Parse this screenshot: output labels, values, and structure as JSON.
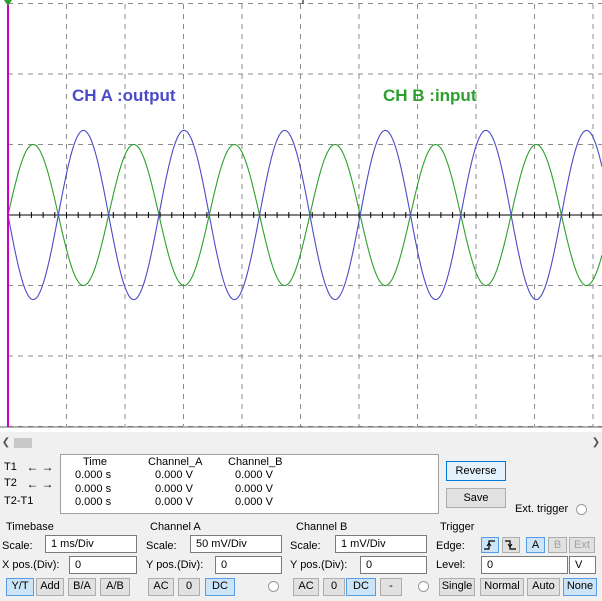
{
  "scope": {
    "background": "#ffffff",
    "grid_color": "#8c8c8c",
    "channel_a": {
      "label": "CH A :output",
      "color": "#4b4bc8",
      "amplitude_div": 1.2,
      "period_div": 1.72,
      "phase_deg": 180
    },
    "channel_b": {
      "label": "CH B :input",
      "color": "#2ca02c",
      "amplitude_div": 1.0,
      "period_div": 1.72,
      "phase_deg": 0
    }
  },
  "readout": {
    "headers": [
      "Time",
      "Channel_A",
      "Channel_B"
    ],
    "rows": [
      {
        "label": "T1",
        "time": "0.000 s",
        "a": "0.000 V",
        "b": "0.000 V"
      },
      {
        "label": "T2",
        "time": "0.000 s",
        "a": "0.000 V",
        "b": "0.000 V"
      },
      {
        "label": "T2-T1",
        "time": "0.000 s",
        "a": "0.000 V",
        "b": "0.000 V"
      }
    ],
    "reverse_label": "Reverse",
    "save_label": "Save",
    "ext_trigger_label": "Ext. trigger"
  },
  "timebase": {
    "title": "Timebase",
    "scale_label": "Scale:",
    "scale_value": "1 ms/Div",
    "xpos_label": "X pos.(Div):",
    "xpos_value": "0",
    "modes": [
      "Y/T",
      "Add",
      "B/A",
      "A/B"
    ]
  },
  "channel_a": {
    "title": "Channel A",
    "scale_label": "Scale:",
    "scale_value": "50 mV/Div",
    "ypos_label": "Y pos.(Div):",
    "ypos_value": "0",
    "coupling": [
      "AC",
      "0",
      "DC"
    ]
  },
  "channel_b": {
    "title": "Channel B",
    "scale_label": "Scale:",
    "scale_value": "1 mV/Div",
    "ypos_label": "Y pos.(Div):",
    "ypos_value": "0",
    "coupling": [
      "AC",
      "0",
      "DC",
      "-"
    ]
  },
  "trigger": {
    "title": "Trigger",
    "edge_label": "Edge:",
    "level_label": "Level:",
    "level_value": "0",
    "level_unit": "V",
    "sources": [
      "A",
      "B",
      "Ext"
    ],
    "modes": [
      "Single",
      "Normal",
      "Auto",
      "None"
    ]
  }
}
